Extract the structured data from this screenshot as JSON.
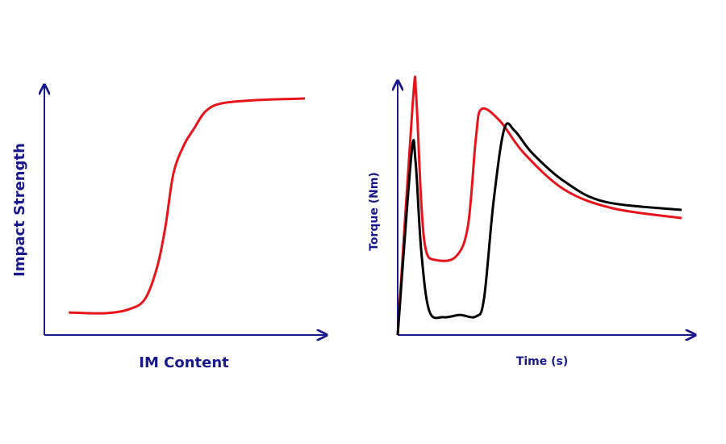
{
  "chart_data": [
    {
      "type": "line",
      "ylabel": "Impact Strength",
      "xlabel": "IM Content",
      "xlim": [
        0,
        100
      ],
      "ylim": [
        0,
        100
      ],
      "x": [
        8.6,
        21.4,
        30,
        35.7,
        40,
        42.9,
        45.7,
        49.4,
        52.9,
        57.1,
        62.9,
        75.7,
        92.3
      ],
      "series": [
        {
          "color": "#e8141c",
          "values": [
            9.0,
            8.7,
            10.3,
            14.5,
            27.4,
            43.5,
            64.5,
            75.8,
            82.3,
            89.4,
            92.6,
            93.9,
            94.5
          ]
        }
      ]
    },
    {
      "type": "line",
      "ylabel": "Torque (Nm)",
      "xlabel": "Time (s)",
      "xlim": [
        0,
        100
      ],
      "ylim": [
        0,
        100
      ],
      "series": [
        {
          "color": "#e8141c",
          "x": [
            0,
            5.1,
            6.2,
            7.9,
            9.5,
            12.7,
            19.5,
            23.6,
            26.3,
            28.2,
            34.4,
            42.5,
            56.1,
            72.4,
            95.4
          ],
          "values": [
            0,
            92,
            94.3,
            52.4,
            33.3,
            29.5,
            30.8,
            42.9,
            77.8,
            88.9,
            84.1,
            71.4,
            57.1,
            49.8,
            46
          ]
        },
        {
          "color": "#000000",
          "x": [
            0,
            4.6,
            6,
            7.9,
            10.6,
            15.4,
            20.9,
            26.3,
            29,
            32.2,
            35.8,
            39.3,
            45.3,
            56.1,
            69.6,
            95.4
          ],
          "values": [
            0,
            70.8,
            68.3,
            33.3,
            9.5,
            7,
            7.9,
            7.3,
            14.3,
            52.4,
            81,
            80.3,
            71.4,
            60.3,
            52.4,
            49.2
          ]
        }
      ]
    }
  ]
}
